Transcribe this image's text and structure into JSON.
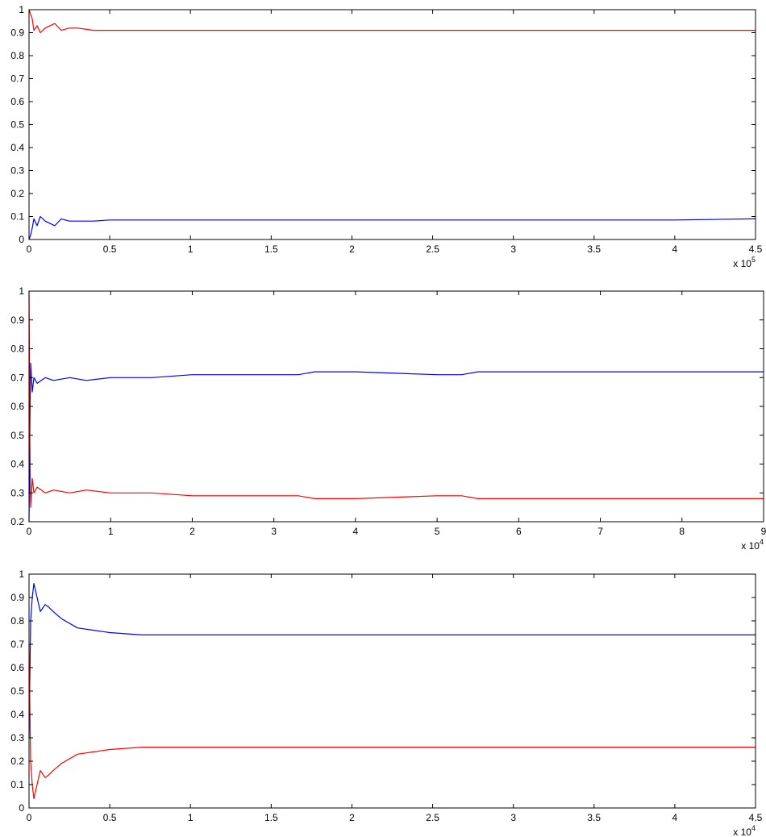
{
  "chart_data": [
    {
      "type": "line",
      "title": "",
      "xlabel": "",
      "ylabel": "",
      "xlim": [
        0,
        4.5
      ],
      "ylim": [
        0,
        1
      ],
      "x_multiplier": {
        "base": "x 10",
        "exponent": "5"
      },
      "xticks": [
        0,
        0.5,
        1,
        1.5,
        2,
        2.5,
        3,
        3.5,
        4,
        4.5
      ],
      "xtick_labels": [
        "0",
        "0.5",
        "1",
        "1.5",
        "2",
        "2.5",
        "3",
        "3.5",
        "4",
        "4.5"
      ],
      "yticks": [
        0,
        0.1,
        0.2,
        0.3,
        0.4,
        0.5,
        0.6,
        0.7,
        0.8,
        0.9,
        1
      ],
      "ytick_labels": [
        "0",
        "0.1",
        "0.2",
        "0.3",
        "0.4",
        "0.5",
        "0.6",
        "0.7",
        "0.8",
        "0.9",
        "1"
      ],
      "grid": false,
      "legend": "none",
      "series": [
        {
          "color": "#ff0000",
          "x": [
            0,
            0.01,
            0.02,
            0.03,
            0.05,
            0.07,
            0.1,
            0.13,
            0.16,
            0.2,
            0.25,
            0.3,
            0.4,
            0.5,
            0.6,
            0.7,
            0.8,
            1.0,
            1.2,
            1.5,
            1.7,
            2.0,
            2.5,
            3.0,
            3.5,
            4.0,
            4.5
          ],
          "y": [
            1.0,
            0.98,
            0.96,
            0.91,
            0.93,
            0.9,
            0.92,
            0.93,
            0.94,
            0.91,
            0.92,
            0.92,
            0.91,
            0.91,
            0.91,
            0.91,
            0.91,
            0.91,
            0.91,
            0.91,
            0.91,
            0.91,
            0.91,
            0.91,
            0.91,
            0.91,
            0.91
          ]
        },
        {
          "color": "#0000ff",
          "x": [
            0,
            0.01,
            0.02,
            0.03,
            0.05,
            0.07,
            0.1,
            0.13,
            0.16,
            0.2,
            0.25,
            0.3,
            0.4,
            0.5,
            0.6,
            0.7,
            0.8,
            1.0,
            1.2,
            1.5,
            1.7,
            2.0,
            2.5,
            3.0,
            3.5,
            4.0,
            4.5
          ],
          "y": [
            0.0,
            0.02,
            0.05,
            0.09,
            0.06,
            0.1,
            0.08,
            0.07,
            0.06,
            0.09,
            0.08,
            0.08,
            0.08,
            0.085,
            0.085,
            0.085,
            0.085,
            0.085,
            0.085,
            0.085,
            0.085,
            0.085,
            0.085,
            0.085,
            0.085,
            0.085,
            0.09
          ]
        }
      ]
    },
    {
      "type": "line",
      "title": "",
      "xlabel": "",
      "ylabel": "",
      "xlim": [
        0,
        9
      ],
      "ylim": [
        0.2,
        1
      ],
      "x_multiplier": {
        "base": "x 10",
        "exponent": "4"
      },
      "xticks": [
        0,
        1,
        2,
        3,
        4,
        5,
        6,
        7,
        8,
        9
      ],
      "xtick_labels": [
        "0",
        "1",
        "2",
        "3",
        "4",
        "5",
        "6",
        "7",
        "8",
        "9"
      ],
      "yticks": [
        0.2,
        0.3,
        0.4,
        0.5,
        0.6,
        0.7,
        0.8,
        0.9,
        1
      ],
      "ytick_labels": [
        "0.2",
        "0.3",
        "0.4",
        "0.5",
        "0.6",
        "0.7",
        "0.8",
        "0.9",
        "1"
      ],
      "grid": false,
      "legend": "none",
      "series": [
        {
          "color": "#0000ff",
          "x": [
            0,
            0.01,
            0.02,
            0.04,
            0.06,
            0.1,
            0.15,
            0.2,
            0.3,
            0.5,
            0.7,
            1.0,
            1.5,
            2.0,
            2.5,
            3.0,
            3.3,
            3.5,
            4.0,
            5.0,
            5.3,
            5.5,
            6.0,
            7.0,
            8.0,
            9.0
          ],
          "y": [
            0.2,
            0.5,
            0.75,
            0.65,
            0.7,
            0.68,
            0.69,
            0.7,
            0.69,
            0.7,
            0.69,
            0.7,
            0.7,
            0.71,
            0.71,
            0.71,
            0.71,
            0.72,
            0.72,
            0.71,
            0.71,
            0.72,
            0.72,
            0.72,
            0.72,
            0.72
          ]
        },
        {
          "color": "#ff0000",
          "x": [
            0,
            0.01,
            0.02,
            0.04,
            0.06,
            0.1,
            0.15,
            0.2,
            0.3,
            0.5,
            0.7,
            1.0,
            1.5,
            2.0,
            2.5,
            3.0,
            3.3,
            3.5,
            4.0,
            5.0,
            5.3,
            5.5,
            6.0,
            7.0,
            8.0,
            9.0
          ],
          "y": [
            1.0,
            0.5,
            0.25,
            0.35,
            0.3,
            0.32,
            0.31,
            0.3,
            0.31,
            0.3,
            0.31,
            0.3,
            0.3,
            0.29,
            0.29,
            0.29,
            0.29,
            0.28,
            0.28,
            0.29,
            0.29,
            0.28,
            0.28,
            0.28,
            0.28,
            0.28
          ]
        }
      ]
    },
    {
      "type": "line",
      "title": "",
      "xlabel": "",
      "ylabel": "",
      "xlim": [
        0,
        4.5
      ],
      "ylim": [
        0,
        1
      ],
      "x_multiplier": {
        "base": "x 10",
        "exponent": "4"
      },
      "xticks": [
        0,
        0.5,
        1,
        1.5,
        2,
        2.5,
        3,
        3.5,
        4,
        4.5
      ],
      "xtick_labels": [
        "0",
        "0.5",
        "1",
        "1.5",
        "2",
        "2.5",
        "3",
        "3.5",
        "4",
        "4.5"
      ],
      "yticks": [
        0,
        0.1,
        0.2,
        0.3,
        0.4,
        0.5,
        0.6,
        0.7,
        0.8,
        0.9,
        1
      ],
      "ytick_labels": [
        "0",
        "0.1",
        "0.2",
        "0.3",
        "0.4",
        "0.5",
        "0.6",
        "0.7",
        "0.8",
        "0.9",
        "1"
      ],
      "grid": false,
      "legend": "none",
      "series": [
        {
          "color": "#0000ff",
          "x": [
            0,
            0.01,
            0.02,
            0.03,
            0.05,
            0.07,
            0.1,
            0.12,
            0.15,
            0.2,
            0.3,
            0.4,
            0.5,
            0.7,
            1.0,
            1.5,
            2.0,
            3.0,
            4.0,
            4.5
          ],
          "y": [
            0.3,
            0.8,
            0.9,
            0.96,
            0.9,
            0.84,
            0.87,
            0.86,
            0.84,
            0.81,
            0.77,
            0.76,
            0.75,
            0.74,
            0.74,
            0.74,
            0.74,
            0.74,
            0.74,
            0.74
          ]
        },
        {
          "color": "#ff0000",
          "x": [
            0,
            0.01,
            0.02,
            0.03,
            0.05,
            0.07,
            0.1,
            0.12,
            0.15,
            0.2,
            0.3,
            0.4,
            0.5,
            0.7,
            1.0,
            1.5,
            2.0,
            3.0,
            4.0,
            4.5
          ],
          "y": [
            0.7,
            0.2,
            0.1,
            0.04,
            0.1,
            0.16,
            0.13,
            0.14,
            0.16,
            0.19,
            0.23,
            0.24,
            0.25,
            0.26,
            0.26,
            0.26,
            0.26,
            0.26,
            0.26,
            0.26
          ]
        }
      ]
    }
  ]
}
